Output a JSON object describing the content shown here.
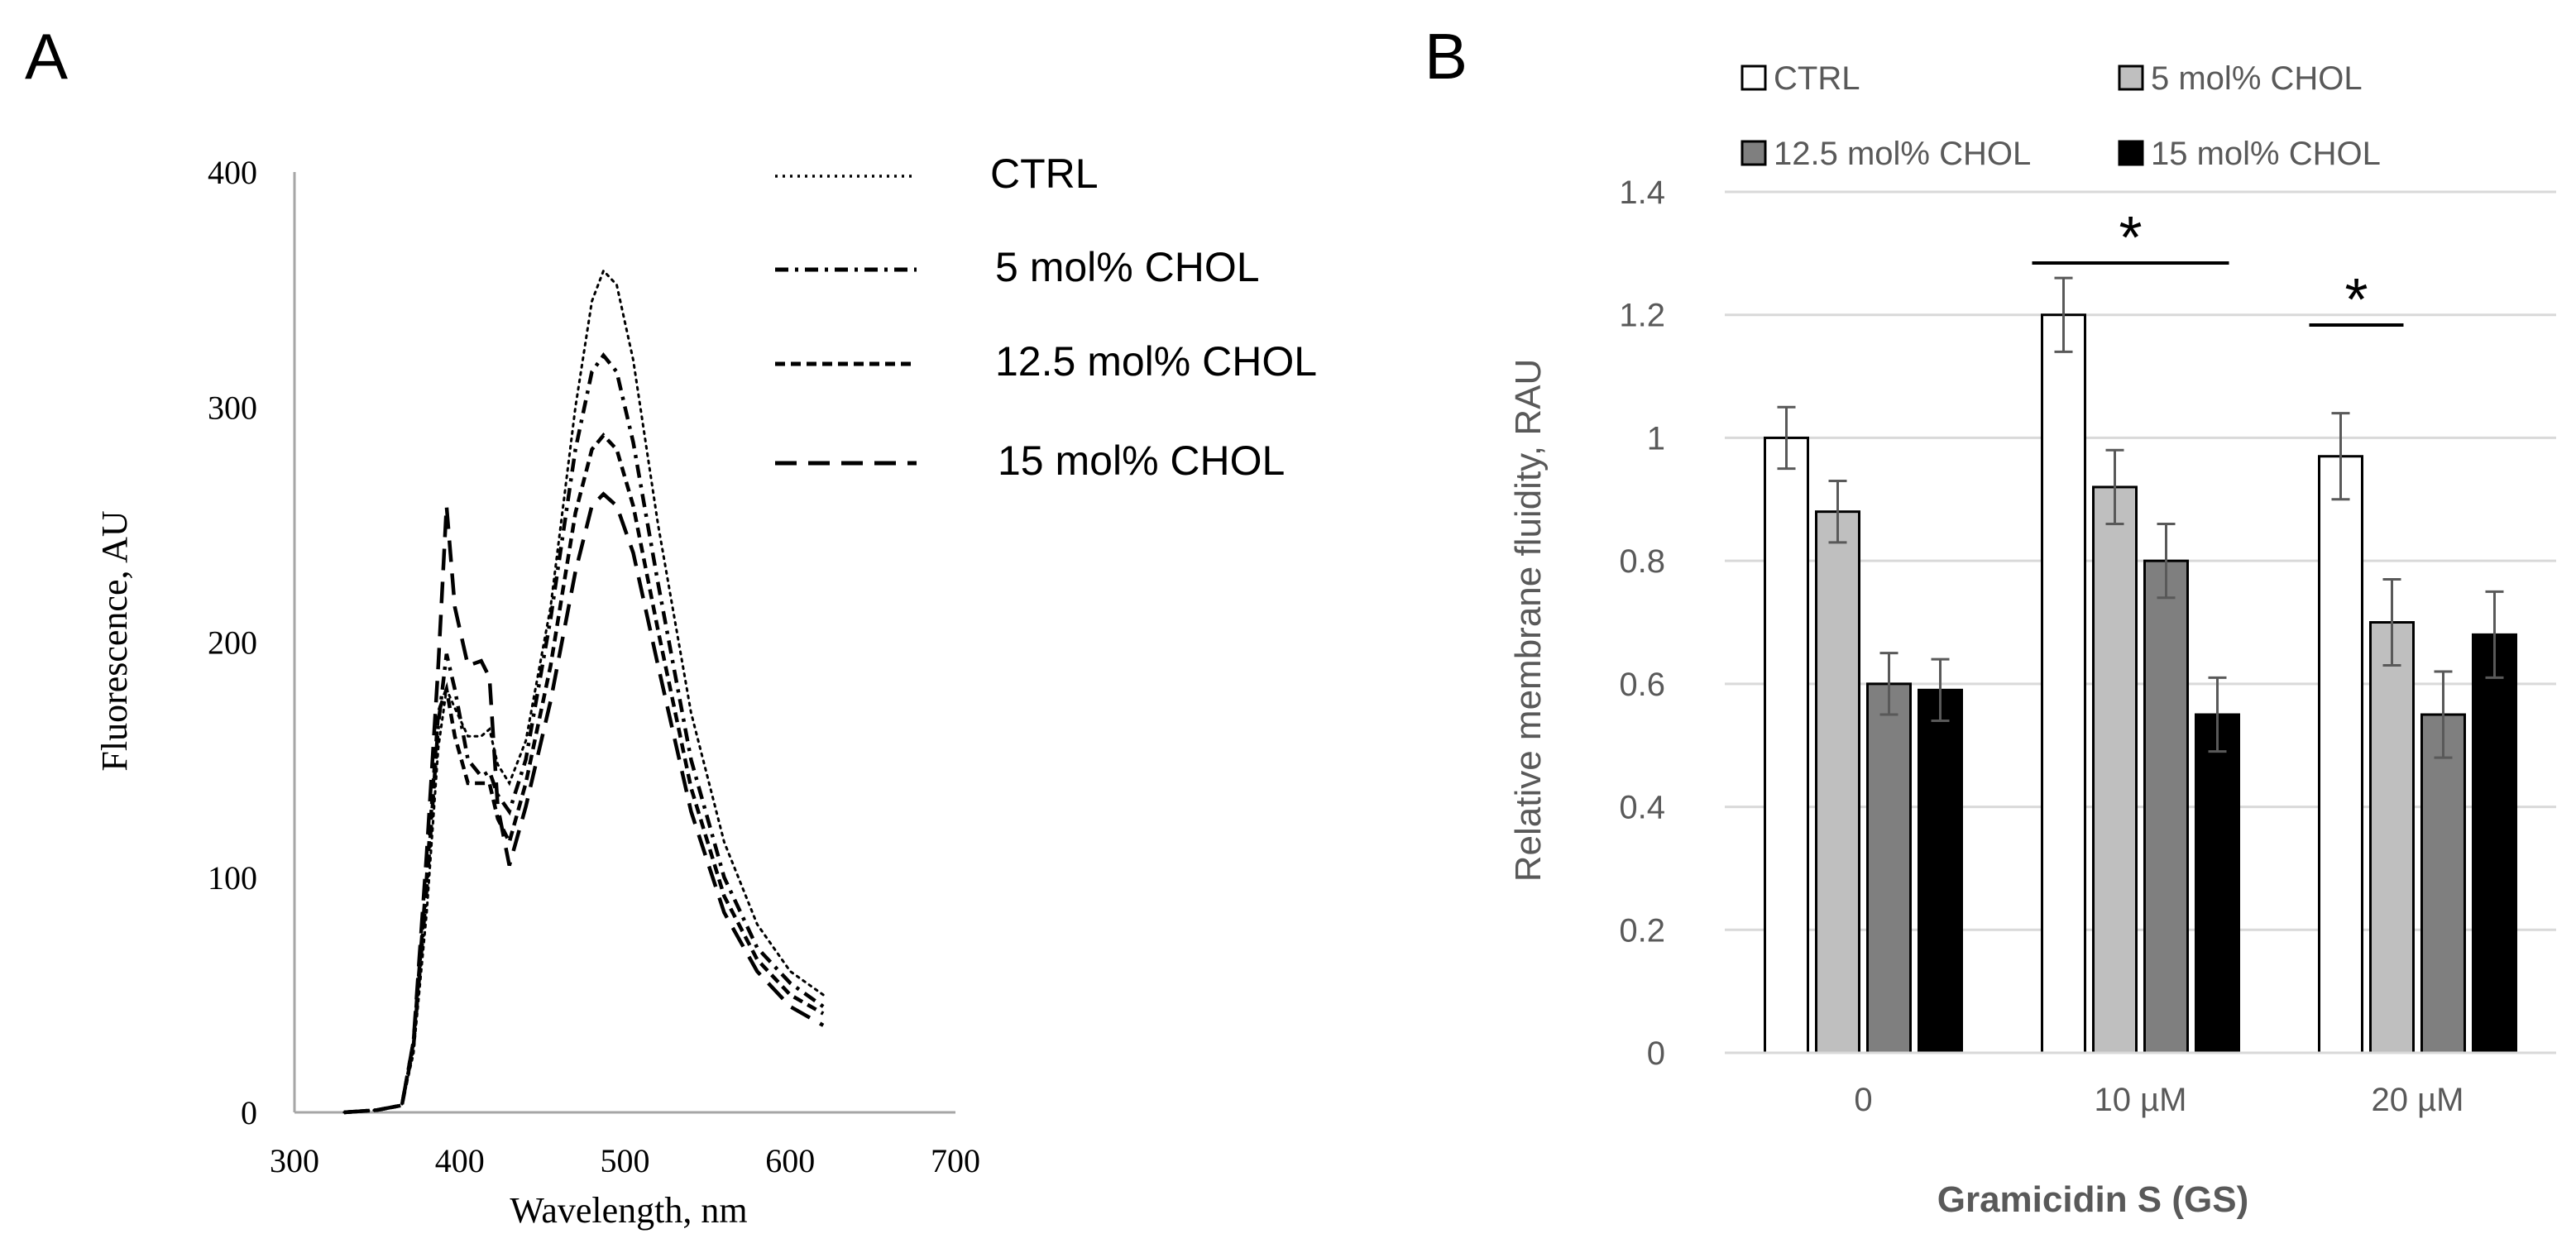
{
  "panels": {
    "a_label": "A",
    "b_label": "B"
  },
  "chart_data": [
    {
      "type": "line",
      "panel": "A",
      "title": "",
      "xlabel": "Wavelength,  nm",
      "ylabel": "Fluorescence, AU",
      "xlim": [
        300,
        700
      ],
      "ylim": [
        0,
        400
      ],
      "xticks": [
        "300",
        "400",
        "500",
        "600",
        "700"
      ],
      "yticks": [
        "0",
        "100",
        "200",
        "300",
        "400"
      ],
      "grid": false,
      "legend_position": "top-right",
      "series": [
        {
          "name": "CTRL",
          "style": "dotted",
          "x": [
            330,
            350,
            365,
            372,
            380,
            387,
            392,
            397,
            405,
            413,
            418,
            423,
            430,
            440,
            455,
            470,
            480,
            487,
            495,
            505,
            520,
            540,
            560,
            580,
            600,
            620
          ],
          "y": [
            0,
            1,
            3,
            25,
            85,
            155,
            180,
            172,
            160,
            160,
            163,
            148,
            140,
            158,
            215,
            300,
            345,
            358,
            352,
            320,
            250,
            170,
            115,
            80,
            60,
            50
          ]
        },
        {
          "name": "5 mol% CHOL",
          "style": "dash-dot",
          "x": [
            330,
            350,
            365,
            372,
            380,
            387,
            392,
            397,
            405,
            413,
            418,
            423,
            430,
            440,
            455,
            470,
            480,
            487,
            495,
            505,
            520,
            540,
            560,
            580,
            600,
            620
          ],
          "y": [
            0,
            1,
            3,
            28,
            95,
            165,
            195,
            180,
            150,
            143,
            145,
            135,
            128,
            150,
            210,
            282,
            315,
            322,
            315,
            285,
            225,
            150,
            100,
            70,
            55,
            45
          ]
        },
        {
          "name": "12.5 mol% CHOL",
          "style": "short-dash",
          "x": [
            330,
            350,
            365,
            372,
            380,
            387,
            392,
            397,
            405,
            413,
            418,
            423,
            430,
            440,
            455,
            470,
            480,
            487,
            495,
            505,
            520,
            540,
            560,
            580,
            600,
            620
          ],
          "y": [
            0,
            1,
            3,
            30,
            100,
            170,
            180,
            160,
            140,
            140,
            140,
            125,
            115,
            140,
            190,
            255,
            282,
            288,
            282,
            258,
            205,
            138,
            92,
            65,
            50,
            42
          ]
        },
        {
          "name": "15 mol% CHOL",
          "style": "long-dash",
          "x": [
            330,
            350,
            365,
            372,
            380,
            387,
            392,
            397,
            405,
            413,
            418,
            423,
            430,
            440,
            455,
            470,
            480,
            487,
            495,
            505,
            520,
            540,
            560,
            580,
            600,
            620
          ],
          "y": [
            0,
            1,
            3,
            30,
            110,
            190,
            258,
            215,
            190,
            192,
            185,
            130,
            105,
            130,
            175,
            230,
            258,
            263,
            258,
            238,
            190,
            128,
            85,
            60,
            45,
            37
          ]
        }
      ]
    },
    {
      "type": "bar",
      "panel": "B",
      "title": "",
      "xlabel": "Gramicidin S (GS)",
      "ylabel": "Relative membrane fluidity, RAU",
      "ylim": [
        0,
        1.4
      ],
      "yticks": [
        "0",
        "0.2",
        "0.4",
        "0.6",
        "0.8",
        "1",
        "1.2",
        "1.4"
      ],
      "grid": true,
      "legend_position": "top",
      "categories": [
        "0",
        "10 µM",
        "20 µM"
      ],
      "series": [
        {
          "name": "CTRL",
          "color": "#ffffff",
          "values": [
            1.0,
            1.2,
            0.97
          ],
          "errors": [
            0.05,
            0.06,
            0.07
          ]
        },
        {
          "name": "5 mol% CHOL",
          "color": "#bfbfbf",
          "values": [
            0.88,
            0.92,
            0.7
          ],
          "errors": [
            0.05,
            0.06,
            0.07
          ]
        },
        {
          "name": "12.5 mol% CHOL",
          "color": "#7f7f7f",
          "values": [
            0.6,
            0.8,
            0.55
          ],
          "errors": [
            0.05,
            0.06,
            0.07
          ]
        },
        {
          "name": "15 mol% CHOL",
          "color": "#000000",
          "values": [
            0.59,
            0.55,
            0.68
          ],
          "errors": [
            0.05,
            0.06,
            0.07
          ]
        }
      ],
      "annotations": [
        {
          "text": "*",
          "category": "10 µM",
          "spans": "CTRL to 15 mol% CHOL"
        },
        {
          "text": "*",
          "category": "20 µM",
          "spans": "CTRL to 5 mol% CHOL"
        }
      ]
    }
  ]
}
